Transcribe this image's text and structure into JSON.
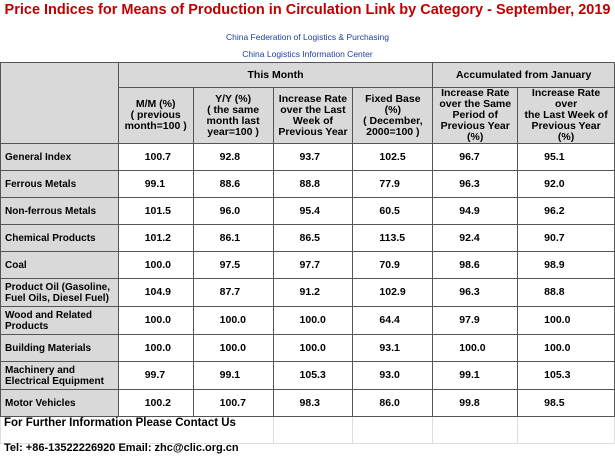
{
  "header": {
    "title": "Price Indices for Means of Production in Circulation Link by Category - September, 2019",
    "source_lines": [
      "China Federation of Logistics & Purchasing",
      "China Logistics Information Center"
    ]
  },
  "table": {
    "groups": [
      "This Month",
      "Accumulated from January"
    ],
    "columns": [
      [
        "M/M (%)",
        "( previous",
        "month=100 )"
      ],
      [
        "Y/Y (%)",
        "( the same",
        "month last",
        "year=100 )"
      ],
      [
        "Increase Rate",
        "over the Last",
        "Week of",
        "Previous Year"
      ],
      [
        "Fixed Base (%)",
        "( December,",
        "2000=100 )"
      ],
      [
        "Increase Rate",
        "over the Same",
        "Period of",
        "Previous Year (%)"
      ],
      [
        "Increase Rate",
        "over",
        "the Last Week of",
        "Previous Year (%)"
      ]
    ],
    "rows": [
      [
        "General Index",
        "100.7",
        "92.8",
        "93.7",
        "102.5",
        "96.7",
        "95.1"
      ],
      [
        "Ferrous Metals",
        "99.1",
        "88.6",
        "88.8",
        "77.9",
        "96.3",
        "92.0"
      ],
      [
        "Non-ferrous Metals",
        "101.5",
        "96.0",
        "95.4",
        "60.5",
        "94.9",
        "96.2"
      ],
      [
        "Chemical Products",
        "101.2",
        "86.1",
        "86.5",
        "113.5",
        "92.4",
        "90.7"
      ],
      [
        "Coal",
        "100.0",
        "97.5",
        "97.7",
        "70.9",
        "98.6",
        "98.9"
      ],
      [
        "Product Oil (Gasoline, Fuel Oils, Diesel Fuel)",
        "104.9",
        "87.7",
        "91.2",
        "102.9",
        "96.3",
        "88.8"
      ],
      [
        "Wood and Related Products",
        "100.0",
        "100.0",
        "100.0",
        "64.4",
        "97.9",
        "100.0"
      ],
      [
        "Building Materials",
        "100.0",
        "100.0",
        "100.0",
        "93.1",
        "100.0",
        "100.0"
      ],
      [
        "Machinery and Electrical Equipment",
        "99.7",
        "99.1",
        "105.3",
        "93.0",
        "99.1",
        "105.3"
      ],
      [
        "Motor Vehicles",
        "100.2",
        "100.7",
        "98.3",
        "86.0",
        "99.8",
        "98.5"
      ]
    ]
  },
  "footer": {
    "contact": "For Further Information Please Contact Us",
    "tel": "Tel: +86-13522226920  Email: zhc@clic.org.cn"
  }
}
